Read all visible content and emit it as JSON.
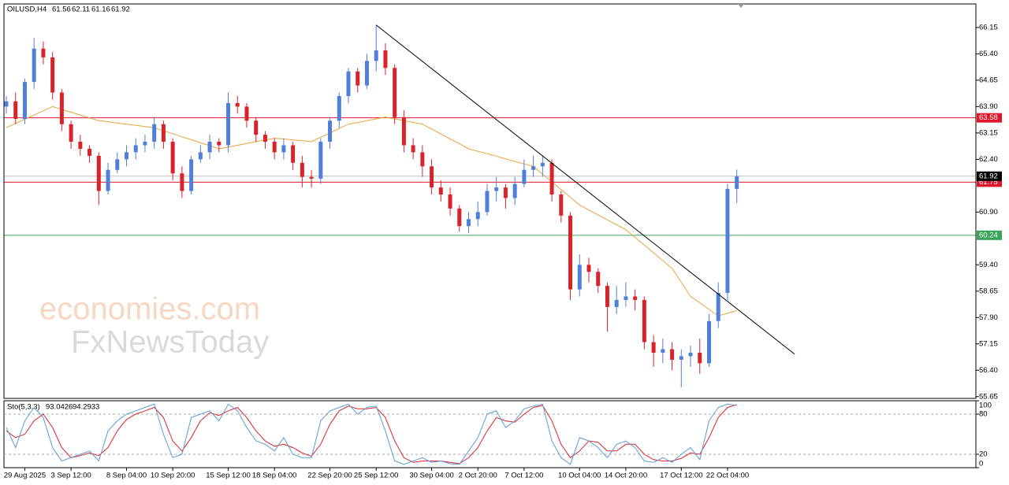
{
  "chart_data": {
    "type": "candlestick",
    "symbol": "OILUSD,H4",
    "categories": [
      null,
      null,
      "29 Aug 2025",
      null,
      null,
      null,
      null,
      "3 Sep 12:00",
      null,
      null,
      null,
      null,
      null,
      "8 Sep 04:00",
      null,
      null,
      null,
      null,
      "10 Sep 20:00",
      null,
      null,
      null,
      null,
      null,
      "15 Sep 12:00",
      null,
      null,
      null,
      null,
      "18 Sep 04:00",
      null,
      null,
      null,
      null,
      null,
      "22 Sep 20:00",
      null,
      null,
      null,
      null,
      "25 Sep 12:00",
      null,
      null,
      null,
      null,
      null,
      "30 Sep 04:00",
      null,
      null,
      null,
      null,
      "2 Oct 20:00",
      null,
      null,
      null,
      null,
      "7 Oct 12:00",
      null,
      null,
      null,
      null,
      null,
      "10 Oct 04:00",
      null,
      null,
      null,
      null,
      "14 Oct 20:00",
      null,
      null,
      null,
      null,
      null,
      "17 Oct 12:00",
      null,
      null,
      null,
      null,
      "22 Oct 04:00",
      null
    ],
    "open": [
      63.9,
      64.05,
      63.55,
      64.6,
      65.55,
      65.3,
      64.3,
      63.4,
      62.9,
      62.7,
      62.5,
      61.5,
      62.1,
      62.4,
      62.6,
      62.8,
      62.9,
      63.4,
      62.9,
      62.0,
      61.5,
      62.4,
      62.6,
      62.9,
      62.8,
      64.0,
      63.9,
      63.5,
      63.1,
      62.9,
      62.6,
      62.8,
      62.3,
      61.9,
      61.85,
      62.9,
      63.5,
      64.2,
      64.9,
      64.5,
      65.2,
      65.5,
      65.0,
      63.6,
      62.8,
      62.6,
      62.2,
      61.6,
      61.4,
      61.0,
      60.5,
      60.7,
      60.9,
      61.5,
      61.6,
      61.3,
      61.7,
      62.1,
      62.2,
      62.3,
      61.4,
      60.8,
      58.7,
      59.4,
      59.2,
      58.8,
      58.2,
      58.4,
      58.5,
      58.4,
      57.2,
      56.9,
      57.0,
      56.7,
      56.8,
      56.9,
      56.6,
      57.8,
      58.6,
      61.56
    ],
    "high": [
      64.2,
      64.3,
      64.7,
      65.85,
      65.75,
      65.45,
      64.4,
      63.5,
      63.1,
      62.8,
      62.6,
      62.3,
      62.6,
      62.8,
      63.0,
      63.1,
      63.6,
      63.5,
      63.0,
      62.2,
      62.5,
      62.8,
      63.1,
      63.0,
      64.3,
      64.2,
      64.0,
      63.6,
      63.2,
      63.0,
      63.0,
      62.9,
      62.5,
      62.1,
      63.0,
      63.6,
      64.3,
      65.0,
      65.0,
      65.4,
      66.22,
      65.7,
      65.1,
      63.8,
      63.0,
      62.8,
      62.4,
      61.8,
      61.6,
      61.1,
      60.9,
      61.2,
      61.7,
      61.9,
      61.7,
      61.9,
      62.4,
      62.5,
      62.5,
      62.4,
      61.5,
      60.9,
      59.7,
      59.6,
      59.3,
      58.9,
      58.8,
      58.9,
      58.7,
      58.5,
      57.4,
      57.3,
      57.2,
      57.0,
      57.1,
      57.3,
      58.0,
      58.9,
      61.7,
      62.11
    ],
    "low": [
      63.7,
      63.4,
      63.4,
      64.4,
      65.1,
      64.1,
      63.2,
      62.7,
      62.5,
      62.3,
      61.1,
      61.4,
      62.0,
      62.2,
      62.4,
      62.6,
      62.7,
      62.7,
      61.8,
      61.3,
      61.4,
      62.3,
      62.4,
      62.6,
      62.6,
      63.7,
      63.3,
      62.9,
      62.7,
      62.4,
      62.4,
      62.1,
      61.6,
      61.6,
      61.7,
      62.7,
      63.3,
      64.0,
      64.3,
      64.4,
      64.9,
      64.8,
      63.4,
      62.6,
      62.4,
      61.9,
      61.4,
      61.2,
      60.8,
      60.35,
      60.3,
      60.5,
      60.8,
      61.2,
      61.0,
      61.1,
      61.6,
      61.9,
      61.9,
      61.2,
      60.6,
      58.4,
      58.5,
      58.9,
      58.6,
      57.5,
      58.0,
      58.2,
      58.1,
      57.0,
      56.5,
      56.6,
      56.4,
      55.92,
      56.5,
      56.3,
      56.5,
      57.6,
      58.4,
      61.16
    ],
    "close": [
      64.05,
      63.55,
      64.6,
      65.55,
      65.3,
      64.3,
      63.4,
      62.9,
      62.7,
      62.5,
      61.5,
      62.1,
      62.4,
      62.6,
      62.8,
      62.9,
      63.4,
      62.9,
      62.0,
      61.5,
      62.4,
      62.6,
      62.9,
      62.8,
      64.0,
      63.9,
      63.5,
      63.1,
      62.9,
      62.6,
      62.8,
      62.3,
      61.9,
      61.85,
      62.9,
      63.5,
      64.2,
      64.9,
      64.5,
      65.2,
      65.5,
      65.0,
      63.6,
      62.8,
      62.6,
      62.2,
      61.6,
      61.4,
      61.0,
      60.5,
      60.7,
      60.9,
      61.5,
      61.6,
      61.3,
      61.7,
      62.1,
      62.2,
      62.3,
      61.4,
      60.8,
      58.7,
      59.4,
      59.2,
      58.8,
      58.2,
      58.4,
      58.5,
      58.4,
      57.2,
      56.9,
      57.0,
      56.7,
      56.8,
      56.9,
      56.6,
      57.8,
      58.6,
      61.56,
      61.92
    ],
    "up_color": "#4f7fd9",
    "down_color": "#d8232a",
    "ma": [
      63.3,
      63.42,
      63.54,
      63.66,
      63.78,
      63.9,
      63.82,
      63.74,
      63.66,
      63.58,
      63.5,
      63.47,
      63.43,
      63.4,
      63.37,
      63.33,
      63.3,
      63.21,
      63.13,
      63.04,
      62.96,
      62.87,
      62.79,
      62.7,
      62.75,
      62.8,
      62.85,
      62.9,
      62.95,
      63.0,
      62.98,
      62.95,
      62.93,
      62.9,
      63.03,
      63.15,
      63.28,
      63.4,
      63.45,
      63.5,
      63.55,
      63.6,
      63.55,
      63.5,
      63.45,
      63.4,
      63.26,
      63.12,
      62.98,
      62.84,
      62.7,
      62.63,
      62.56,
      62.49,
      62.41,
      62.34,
      62.27,
      62.2,
      61.98,
      61.76,
      61.54,
      61.32,
      61.1,
      60.96,
      60.82,
      60.68,
      60.54,
      60.4,
      60.18,
      59.96,
      59.74,
      59.52,
      59.3,
      58.9,
      58.5,
      58.32,
      58.13,
      57.95,
      58.02,
      58.1
    ],
    "ma_color": "#e9a23b",
    "ylim": [
      55.6,
      66.82
    ],
    "yticks": [
      66.15,
      {
        "value": 65.4,
        "label": "65.40"
      },
      64.65,
      {
        "value": 63.9,
        "label": "63.90"
      },
      63.15,
      {
        "value": 62.4,
        "label": "62.40"
      },
      {
        "value": 60.9,
        "label": "60.90"
      },
      {
        "value": 59.4,
        "label": "59.40"
      },
      58.65,
      {
        "value": 57.9,
        "label": "57.90"
      },
      57.15,
      {
        "value": 56.4,
        "label": "56.40"
      },
      55.65
    ],
    "levels": [
      {
        "value": 63.58,
        "color": "#e0162b"
      },
      {
        "value": 61.75,
        "color": "#e0162b"
      },
      {
        "value": 60.24,
        "color": "#3aa35a"
      }
    ],
    "trendline": {
      "x": [
        40,
        85.25
      ],
      "y": [
        66.22,
        56.86
      ],
      "color": "#000000"
    },
    "watermark": [
      "economies.com",
      "FxNewsToday"
    ],
    "stochastic": {
      "label": "Sto(5,3,3)",
      "main": [
        60,
        30,
        70,
        90,
        75,
        30,
        10,
        15,
        20,
        25,
        10,
        55,
        70,
        80,
        85,
        90,
        95,
        50,
        15,
        20,
        75,
        80,
        85,
        70,
        95,
        85,
        60,
        40,
        35,
        25,
        45,
        20,
        15,
        15,
        70,
        85,
        90,
        95,
        80,
        90,
        92,
        55,
        10,
        5,
        10,
        15,
        8,
        10,
        6,
        5,
        25,
        45,
        80,
        85,
        60,
        70,
        88,
        92,
        95,
        40,
        15,
        5,
        45,
        40,
        30,
        15,
        35,
        40,
        30,
        10,
        8,
        15,
        8,
        20,
        30,
        12,
        70,
        90,
        95,
        93.0426
      ],
      "signal": [
        55,
        45,
        50,
        70,
        80,
        60,
        30,
        15,
        18,
        22,
        18,
        30,
        55,
        72,
        80,
        85,
        90,
        75,
        40,
        25,
        45,
        70,
        82,
        78,
        85,
        90,
        75,
        55,
        40,
        32,
        35,
        30,
        22,
        17,
        35,
        65,
        85,
        92,
        88,
        88,
        90,
        75,
        40,
        15,
        8,
        10,
        10,
        10,
        8,
        6,
        15,
        30,
        55,
        75,
        70,
        68,
        80,
        90,
        93,
        70,
        35,
        15,
        25,
        40,
        38,
        25,
        25,
        35,
        35,
        20,
        12,
        10,
        10,
        14,
        22,
        20,
        45,
        75,
        90,
        94.2933
      ],
      "main_color": "#5b9bd5",
      "signal_color": "#d9262c",
      "ylim": [
        0,
        100
      ],
      "yticks": [
        100,
        80,
        20,
        0
      ],
      "levels": [
        80,
        20
      ]
    }
  }
}
